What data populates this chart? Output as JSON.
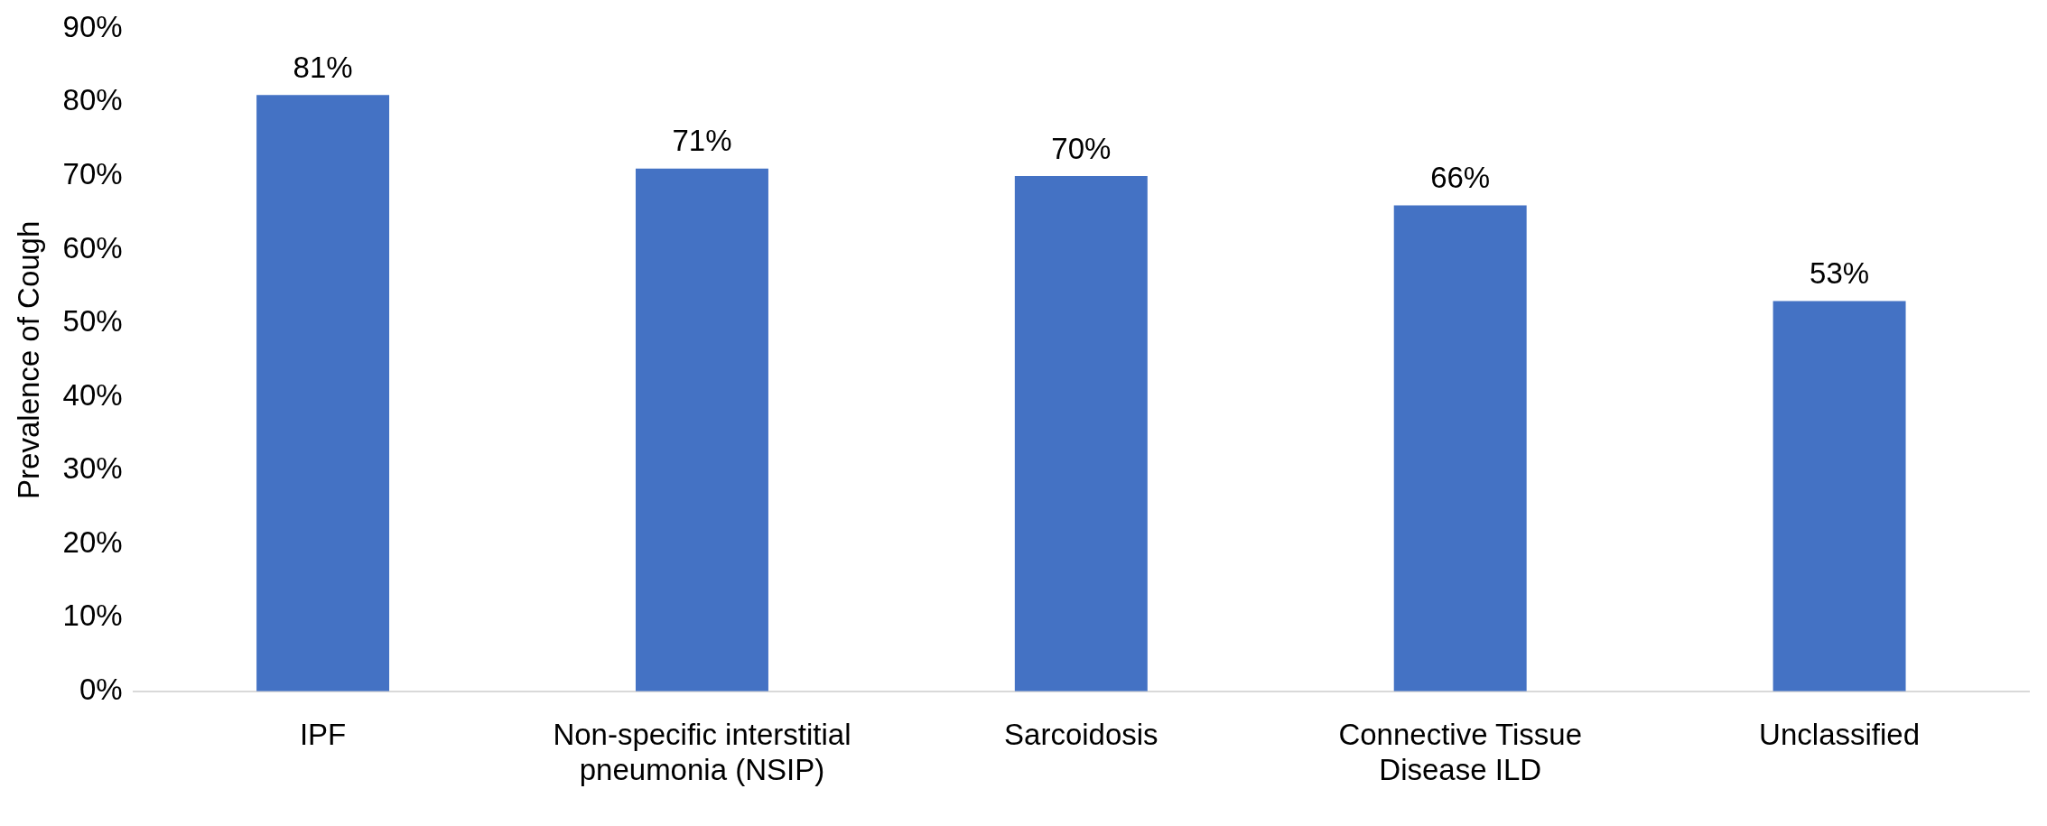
{
  "chart_data": {
    "type": "bar",
    "ylabel": "Prevalence of Cough",
    "categories": [
      "IPF",
      "Non-specific interstitial pneumonia (NSIP)",
      "Sarcoidosis",
      "Connective Tissue Disease ILD",
      "Unclassified"
    ],
    "values": [
      81,
      71,
      70,
      66,
      53
    ],
    "color": "#4472c4",
    "value_labels": [
      "81%",
      "71%",
      "70%",
      "66%",
      "53%"
    ],
    "ylim": [
      0,
      90
    ],
    "yticks": [
      {
        "value": 0,
        "label": "0%"
      },
      {
        "value": 10,
        "label": "10%"
      },
      {
        "value": 20,
        "label": "20%"
      },
      {
        "value": 30,
        "label": "30%"
      },
      {
        "value": 40,
        "label": "40%"
      },
      {
        "value": 50,
        "label": "50%"
      },
      {
        "value": 60,
        "label": "60%"
      },
      {
        "value": 70,
        "label": "70%"
      },
      {
        "value": 80,
        "label": "80%"
      },
      {
        "value": 90,
        "label": "90%"
      }
    ],
    "grid": false,
    "legend": false
  }
}
